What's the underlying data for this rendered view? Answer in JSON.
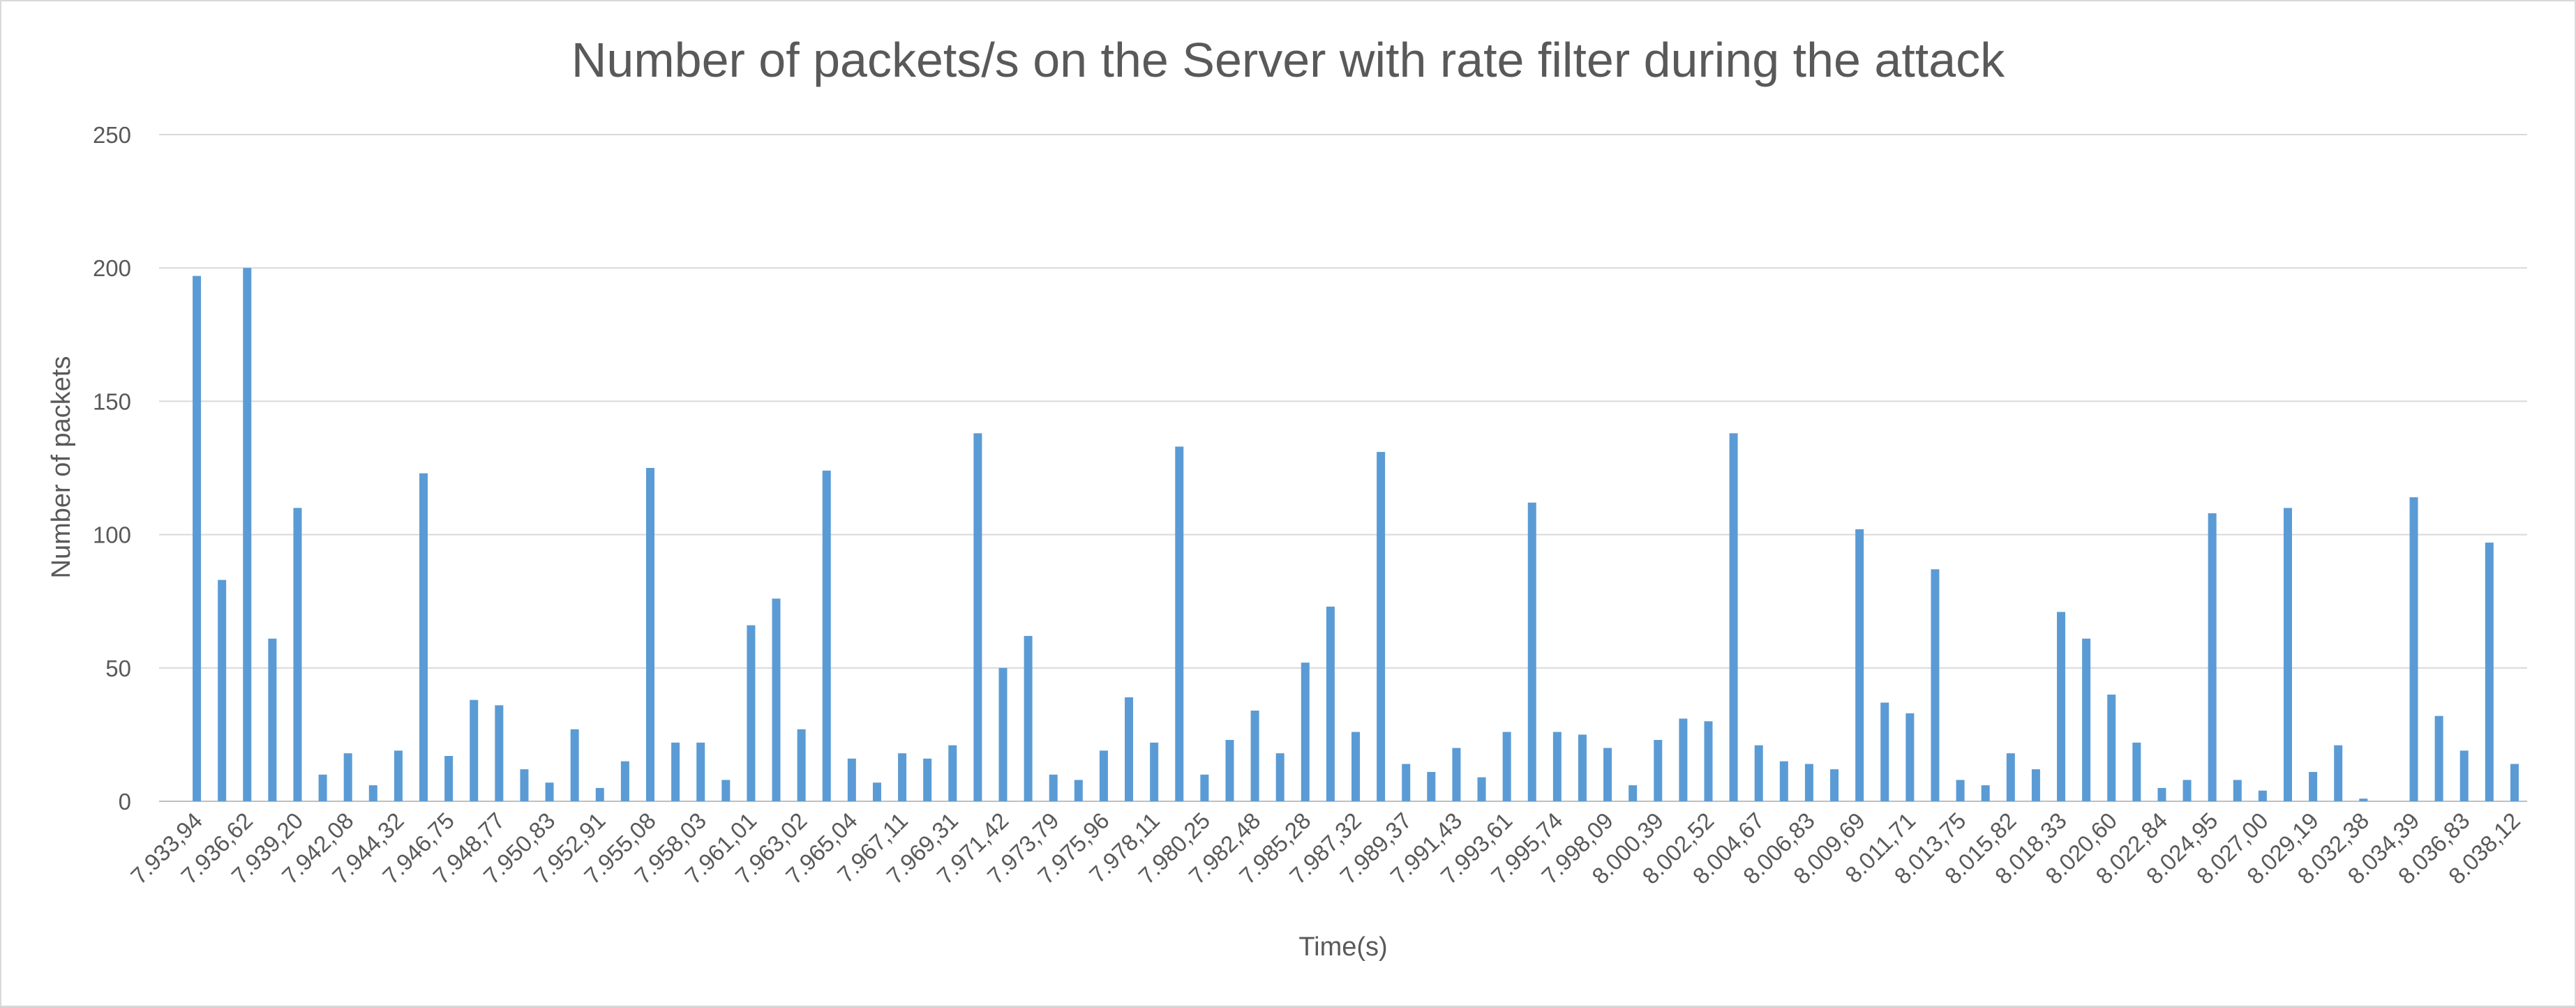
{
  "chart_data": {
    "type": "bar",
    "title": "Number of packets/s on the Server with rate filter during the attack",
    "x_label": "Time(s)",
    "y_label": "Number of packets",
    "color": "#5b9bd5",
    "grid": true,
    "ylim": [
      0,
      250
    ],
    "yticks": [
      0,
      50,
      100,
      150,
      200,
      250
    ],
    "categories": [
      "7.933,94",
      null,
      "7.936,62",
      null,
      "7.939,20",
      null,
      "7.942,08",
      null,
      "7.944,32",
      null,
      "7.946,75",
      null,
      "7.948,77",
      null,
      "7.950,83",
      null,
      "7.952,91",
      null,
      "7.955,08",
      null,
      "7.958,03",
      null,
      "7.961,01",
      null,
      "7.963,02",
      null,
      "7.965,04",
      null,
      "7.967,11",
      null,
      "7.969,31",
      null,
      "7.971,42",
      null,
      "7.973,79",
      null,
      "7.975,96",
      null,
      "7.978,11",
      null,
      "7.980,25",
      null,
      "7.982,48",
      null,
      "7.985,28",
      null,
      "7.987,32",
      null,
      "7.989,37",
      null,
      "7.991,43",
      null,
      "7.993,61",
      null,
      "7.995,74",
      null,
      "7.998,09",
      null,
      "8.000,39",
      null,
      "8.002,52",
      null,
      "8.004,67",
      null,
      "8.006,83",
      null,
      "8.009,69",
      null,
      "8.011,71",
      null,
      "8.013,75",
      null,
      "8.015,82",
      null,
      "8.018,33",
      null,
      "8.020,60",
      null,
      "8.022,84",
      null,
      "8.024,95",
      null,
      "8.027,00",
      null,
      "8.029,19",
      null,
      "8.032,38",
      null,
      "8.034,39",
      null,
      "8.036,83",
      null,
      "8.038,12"
    ],
    "values": [
      197,
      83,
      200,
      61,
      110,
      10,
      18,
      6,
      19,
      123,
      17,
      38,
      36,
      12,
      7,
      27,
      5,
      15,
      125,
      22,
      22,
      8,
      66,
      76,
      27,
      124,
      16,
      7,
      18,
      16,
      21,
      138,
      50,
      62,
      10,
      8,
      19,
      39,
      22,
      133,
      10,
      23,
      34,
      18,
      52,
      73,
      26,
      131,
      14,
      11,
      20,
      9,
      26,
      112,
      26,
      25,
      20,
      6,
      23,
      31,
      30,
      138,
      21,
      15,
      14,
      12,
      102,
      37,
      33,
      87,
      8,
      6,
      18,
      12,
      71,
      61,
      40,
      22,
      5,
      8,
      108,
      8,
      4,
      110,
      11,
      21,
      1,
      0,
      114,
      32,
      19,
      97,
      14
    ]
  }
}
